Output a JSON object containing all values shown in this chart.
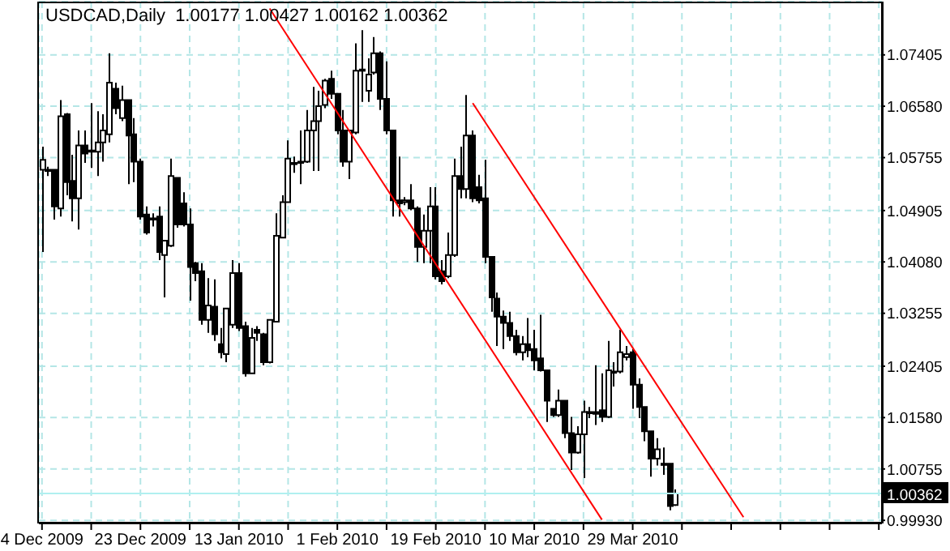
{
  "chart_data": {
    "type": "candlestick",
    "title": "USDCAD,Daily  1.00177 1.00427 1.00162 1.00362",
    "categories": [
      "4 Dec 2009",
      null,
      null,
      null,
      null,
      null,
      null,
      null,
      null,
      null,
      null,
      null,
      null,
      null,
      null,
      null,
      "23 Dec 2009",
      null,
      null,
      null,
      null,
      null,
      null,
      null,
      null,
      null,
      null,
      null,
      null,
      null,
      null,
      null,
      "13 Jan 2010",
      null,
      null,
      null,
      null,
      null,
      null,
      null,
      null,
      null,
      null,
      null,
      null,
      null,
      null,
      null,
      "1 Feb 2010",
      null,
      null,
      null,
      null,
      null,
      null,
      null,
      null,
      null,
      null,
      null,
      null,
      null,
      null,
      null,
      "19 Feb 2010",
      null,
      null,
      null,
      null,
      null,
      null,
      null,
      null,
      null,
      null,
      null,
      null,
      null,
      null,
      null,
      "10 Mar 2010",
      null,
      null,
      null,
      null,
      null,
      null,
      null,
      null,
      null,
      null,
      null,
      null,
      null,
      null,
      null,
      "29 Mar 2010",
      null,
      null,
      null,
      null,
      null,
      null,
      null,
      null,
      null,
      null,
      null,
      null,
      null,
      null,
      null,
      null,
      null,
      null,
      null,
      null,
      null,
      null,
      null,
      null,
      null,
      null,
      null,
      null,
      null,
      null,
      null,
      null,
      null,
      null,
      null,
      null,
      null,
      null,
      null,
      null
    ],
    "ohlc": [
      [
        1.0556,
        1.0593,
        1.0424,
        1.0572
      ],
      [
        1.0554,
        1.0561,
        1.0546,
        1.0556
      ],
      [
        1.0556,
        1.0556,
        1.0476,
        1.0497
      ],
      [
        1.0494,
        1.0668,
        1.0481,
        1.0642
      ],
      [
        1.0645,
        1.0647,
        1.0515,
        1.0536
      ],
      [
        1.0538,
        1.058,
        1.0473,
        1.051
      ],
      [
        1.051,
        1.0619,
        1.046,
        1.0595
      ],
      [
        1.0595,
        1.0619,
        1.0567,
        1.0582
      ],
      [
        1.0585,
        1.0663,
        1.0559,
        1.0587
      ],
      [
        1.0585,
        1.065,
        1.0546,
        1.06
      ],
      [
        1.06,
        1.0645,
        1.0569,
        1.0619
      ],
      [
        1.0613,
        1.0743,
        1.06,
        1.0696
      ],
      [
        1.0686,
        1.0696,
        1.0645,
        1.0655
      ],
      [
        1.0639,
        1.0691,
        1.0634,
        1.0668
      ],
      [
        1.0668,
        1.0668,
        1.0533,
        1.0611
      ],
      [
        1.0613,
        1.0639,
        1.0536,
        1.0569
      ],
      [
        1.0569,
        1.0574,
        1.0476,
        1.0481
      ],
      [
        1.0484,
        1.0497,
        1.0452,
        1.0455
      ],
      [
        1.0476,
        1.0486,
        1.0465,
        1.0478
      ],
      [
        1.0481,
        1.0497,
        1.0411,
        1.0424
      ],
      [
        1.0419,
        1.0442,
        1.0351,
        1.0442
      ],
      [
        1.0434,
        1.0574,
        1.0432,
        1.0546
      ],
      [
        1.0543,
        1.0543,
        1.0463,
        1.0468
      ],
      [
        1.0502,
        1.052,
        1.0465,
        1.0468
      ],
      [
        1.0468,
        1.0494,
        1.0346,
        1.04
      ],
      [
        1.0406,
        1.0408,
        1.0377,
        1.039
      ],
      [
        1.0393,
        1.0406,
        1.0307,
        1.0315
      ],
      [
        1.0315,
        1.0382,
        1.0294,
        1.0338
      ],
      [
        1.0336,
        1.038,
        1.0281,
        1.0292
      ],
      [
        1.0276,
        1.0302,
        1.0253,
        1.0263
      ],
      [
        1.026,
        1.0333,
        1.0247,
        1.0333
      ],
      [
        1.0307,
        1.0411,
        1.0302,
        1.039
      ],
      [
        1.039,
        1.0406,
        1.0297,
        1.0302
      ],
      [
        1.0305,
        1.0312,
        1.0224,
        1.0229
      ],
      [
        1.0229,
        1.0302,
        1.0229,
        1.0286
      ],
      [
        1.0299,
        1.0305,
        1.0281,
        1.0294
      ],
      [
        1.0292,
        1.0294,
        1.0242,
        1.0247
      ],
      [
        1.0247,
        1.0315,
        1.0245,
        1.0315
      ],
      [
        1.0312,
        1.0486,
        1.0312,
        1.045
      ],
      [
        1.0447,
        1.0515,
        1.0447,
        1.0504
      ],
      [
        1.0504,
        1.0603,
        1.0504,
        1.0574
      ],
      [
        1.0567,
        1.0577,
        1.0551,
        1.0566
      ],
      [
        1.0567,
        1.0619,
        1.0533,
        1.0569
      ],
      [
        1.0569,
        1.0652,
        1.0567,
        1.0619
      ],
      [
        1.0619,
        1.0689,
        1.0554,
        1.0634
      ],
      [
        1.0634,
        1.0683,
        1.0554,
        1.0658
      ],
      [
        1.066,
        1.0702,
        1.0655,
        1.0699
      ],
      [
        1.0702,
        1.0715,
        1.067,
        1.0678
      ],
      [
        1.0678,
        1.0678,
        1.0613,
        1.0619
      ],
      [
        1.0619,
        1.0652,
        1.0561,
        1.0569
      ],
      [
        1.0569,
        1.0619,
        1.0541,
        1.0619
      ],
      [
        1.0616,
        1.0759,
        1.0613,
        1.0715
      ],
      [
        1.0715,
        1.078,
        1.0665,
        1.0717
      ],
      [
        1.0683,
        1.0735,
        1.0665,
        1.0709
      ],
      [
        1.0712,
        1.0769,
        1.0709,
        1.0743
      ],
      [
        1.0743,
        1.0746,
        1.0652,
        1.067
      ],
      [
        1.067,
        1.073,
        1.0613,
        1.0619
      ],
      [
        1.0619,
        1.0619,
        1.0481,
        1.0507
      ],
      [
        1.0507,
        1.0577,
        1.0481,
        1.0502
      ],
      [
        1.0504,
        1.0512,
        1.0499,
        1.0507
      ],
      [
        1.0507,
        1.0533,
        1.0491,
        1.0494
      ],
      [
        1.0494,
        1.0497,
        1.0408,
        1.0432
      ],
      [
        1.0432,
        1.0484,
        1.0406,
        1.0458
      ],
      [
        1.0458,
        1.0528,
        1.0406,
        1.0497
      ],
      [
        1.0497,
        1.0528,
        1.038,
        1.0385
      ],
      [
        1.0393,
        1.0411,
        1.0372,
        1.0377
      ],
      [
        1.0385,
        1.0455,
        1.0382,
        1.0419
      ],
      [
        1.0419,
        1.0574,
        1.0416,
        1.0546
      ],
      [
        1.0546,
        1.0593,
        1.051,
        1.0525
      ],
      [
        1.0525,
        1.0676,
        1.051,
        1.0611
      ],
      [
        1.0611,
        1.0619,
        1.0504,
        1.051
      ],
      [
        1.0528,
        1.0548,
        1.0502,
        1.0507
      ],
      [
        1.051,
        1.0572,
        1.0406,
        1.0416
      ],
      [
        1.0416,
        1.0416,
        1.0328,
        1.0351
      ],
      [
        1.0349,
        1.0359,
        1.0273,
        1.032
      ],
      [
        1.032,
        1.033,
        1.0268,
        1.031
      ],
      [
        1.031,
        1.0328,
        1.0281,
        1.0289
      ],
      [
        1.0289,
        1.0299,
        1.0258,
        1.0263
      ],
      [
        1.0263,
        1.0289,
        1.025,
        1.0276
      ],
      [
        1.0276,
        1.0318,
        1.0255,
        1.0266
      ],
      [
        1.0268,
        1.0299,
        1.0234,
        1.025
      ],
      [
        1.0253,
        1.0323,
        1.0232,
        1.0234
      ],
      [
        1.0234,
        1.0234,
        1.0151,
        1.0185
      ],
      [
        1.0172,
        1.0172,
        1.0159,
        1.0162
      ],
      [
        1.0162,
        1.0203,
        1.0159,
        1.0185
      ],
      [
        1.0185,
        1.0185,
        1.0125,
        1.0133
      ],
      [
        1.0133,
        1.0159,
        1.0074,
        1.0102
      ],
      [
        1.0102,
        1.0144,
        1.01,
        1.0131
      ],
      [
        1.0131,
        1.0185,
        1.0061,
        1.0167
      ],
      [
        1.0167,
        1.0175,
        1.0157,
        1.0167
      ],
      [
        1.0167,
        1.0242,
        1.0146,
        1.0164
      ],
      [
        1.017,
        1.0229,
        1.0151,
        1.0159
      ],
      [
        1.0159,
        1.0281,
        1.0157,
        1.0234
      ],
      [
        1.0232,
        1.0247,
        1.0208,
        1.0232
      ],
      [
        1.0232,
        1.0299,
        1.0229,
        1.0263
      ],
      [
        1.0255,
        1.0273,
        1.025,
        1.026
      ],
      [
        1.0263,
        1.0268,
        1.0172,
        1.0211
      ],
      [
        1.0211,
        1.0221,
        1.0157,
        1.0175
      ],
      [
        1.0175,
        1.0175,
        1.012,
        1.0136
      ],
      [
        1.0136,
        1.0136,
        1.0063,
        1.0092
      ],
      [
        1.0092,
        1.0125,
        1.0081,
        1.0107
      ],
      [
        1.0084,
        1.011,
        1.0066,
        1.0084
      ],
      [
        1.0084,
        1.0084,
        1.0009,
        1.0016
      ],
      [
        1.00177,
        1.00427,
        1.00162,
        1.00362
      ],
      null,
      null,
      null,
      null,
      null,
      null,
      null,
      null,
      null,
      null,
      null,
      null,
      null,
      null,
      null,
      null,
      null,
      null,
      null,
      null,
      null,
      null,
      null,
      null,
      null,
      null,
      null,
      null,
      null,
      null,
      null,
      null,
      null
    ],
    "series": [
      {
        "type": "line",
        "color": "#ff0000",
        "values": [
          null,
          null,
          null,
          null,
          null,
          null,
          null,
          null,
          null,
          null,
          null,
          null,
          null,
          null,
          null,
          null,
          null,
          null,
          null,
          null,
          null,
          null,
          null,
          null,
          null,
          null,
          null,
          null,
          null,
          null,
          null,
          null,
          null,
          null,
          null,
          null,
          null,
          1.0815,
          null,
          null,
          null,
          null,
          null,
          null,
          null,
          null,
          null,
          null,
          null,
          null,
          null,
          null,
          null,
          null,
          null,
          null,
          null,
          null,
          null,
          null,
          null,
          null,
          null,
          null,
          null,
          null,
          null,
          null,
          null,
          null,
          null,
          null,
          null,
          null,
          null,
          null,
          null,
          null,
          null,
          null,
          null,
          null,
          null,
          null,
          null,
          null,
          null,
          null,
          null,
          null,
          null,
          0.9994,
          null,
          null,
          null,
          null,
          null,
          null,
          null,
          null,
          null,
          null,
          null,
          null,
          null,
          null,
          null,
          null,
          null,
          null,
          null,
          null,
          null,
          null,
          null,
          null,
          null,
          null,
          null,
          null,
          null,
          null,
          null,
          null,
          null,
          null,
          null,
          null,
          null,
          null,
          null,
          null,
          null,
          null,
          null,
          null,
          null
        ]
      },
      {
        "type": "line",
        "color": "#ff0000",
        "values": [
          null,
          null,
          null,
          null,
          null,
          null,
          null,
          null,
          null,
          null,
          null,
          null,
          null,
          null,
          null,
          null,
          null,
          null,
          null,
          null,
          null,
          null,
          null,
          null,
          null,
          null,
          null,
          null,
          null,
          null,
          null,
          null,
          null,
          null,
          null,
          null,
          null,
          null,
          null,
          null,
          null,
          null,
          null,
          null,
          null,
          null,
          null,
          null,
          null,
          null,
          null,
          null,
          null,
          null,
          null,
          null,
          null,
          null,
          null,
          null,
          null,
          null,
          null,
          null,
          null,
          null,
          null,
          null,
          null,
          null,
          1.0663,
          null,
          null,
          null,
          null,
          null,
          null,
          null,
          null,
          null,
          null,
          null,
          null,
          null,
          null,
          null,
          null,
          null,
          null,
          null,
          null,
          null,
          null,
          null,
          null,
          null,
          null,
          null,
          null,
          null,
          null,
          null,
          null,
          null,
          null,
          null,
          null,
          null,
          null,
          null,
          null,
          null,
          null,
          null,
          0.9998,
          null,
          null,
          null,
          null,
          null,
          null,
          null,
          null,
          null,
          null,
          null,
          null,
          null,
          null,
          null,
          null,
          null,
          null,
          null,
          null,
          null,
          null
        ]
      }
    ],
    "ylim": [
      0.9988,
      1.0826
    ],
    "yticks": [
      1.07405,
      {
        "value": 1.0658,
        "label": "1.06580"
      },
      1.05755,
      1.04905,
      {
        "value": 1.0408,
        "label": "1.04080"
      },
      1.03255,
      1.02405,
      {
        "value": 1.0158,
        "label": "1.01580"
      },
      1.00755,
      {
        "value": 0.9993,
        "label": "0.99930"
      }
    ],
    "ref_lines": [
      {
        "axis": "y",
        "value": 1.00362,
        "label": "1.00362",
        "color": "#b0f0f0"
      }
    ],
    "grid": true
  }
}
